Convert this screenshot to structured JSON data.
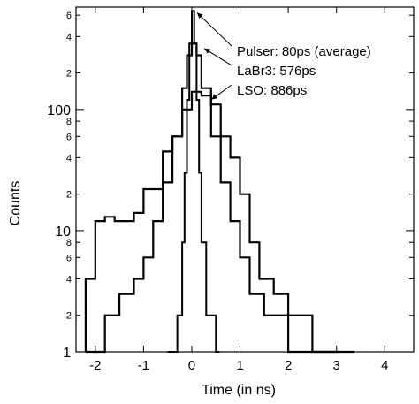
{
  "chart_data": {
    "type": "line",
    "xlabel": "Time (in ns)",
    "ylabel": "Counts",
    "xlim": [
      -2.4,
      4.6
    ],
    "ylim": [
      1,
      700
    ],
    "yscale": "log",
    "grid": false,
    "x_ticks": [
      -2,
      -1,
      0,
      1,
      2,
      3,
      4
    ],
    "x_tick_labels": [
      "-2",
      "-1",
      "0",
      "1",
      "2",
      "3",
      "4"
    ],
    "y_major_ticks": [
      1,
      10,
      100
    ],
    "y_major_labels": [
      "1",
      "10",
      "100"
    ],
    "y_minor_ticks": [
      2,
      4,
      6,
      8,
      20,
      40,
      60,
      80,
      200,
      400,
      600
    ],
    "y_minor_labels": [
      "2",
      "4",
      "6",
      "8",
      "2",
      "4",
      "6",
      "8",
      "2",
      "4",
      "6"
    ],
    "series": [
      {
        "name": "Pulser: 80ps (average)",
        "x": [
          -0.5,
          -0.3,
          -0.2,
          -0.15,
          -0.1,
          -0.05,
          0.0,
          0.05,
          0.1,
          0.15,
          0.2,
          0.3,
          0.5
        ],
        "y": [
          1,
          2,
          8,
          30,
          120,
          350,
          650,
          350,
          120,
          30,
          8,
          2,
          1
        ]
      },
      {
        "name": "LaBr3: 576ps",
        "x": [
          -2.2,
          -1.8,
          -1.5,
          -1.2,
          -1.0,
          -0.8,
          -0.6,
          -0.4,
          -0.2,
          -0.1,
          0.0,
          0.1,
          0.2,
          0.4,
          0.6,
          0.8,
          1.0,
          1.2,
          1.5,
          2.0,
          2.5,
          3.0
        ],
        "y": [
          1,
          2,
          3,
          4,
          6,
          12,
          25,
          60,
          150,
          280,
          350,
          280,
          150,
          60,
          25,
          12,
          6,
          3,
          2,
          1,
          1,
          1
        ]
      },
      {
        "name": "LSO: 886ps",
        "x": [
          -2.2,
          -2.0,
          -1.8,
          -1.6,
          -1.4,
          -1.2,
          -1.0,
          -0.8,
          -0.6,
          -0.4,
          -0.2,
          0.0,
          0.2,
          0.4,
          0.6,
          0.8,
          1.0,
          1.2,
          1.4,
          1.7,
          2.0,
          2.5,
          3.0,
          3.3
        ],
        "y": [
          4,
          12,
          13,
          12,
          12,
          14,
          22,
          22,
          45,
          60,
          100,
          140,
          130,
          110,
          60,
          40,
          20,
          8,
          4,
          3,
          2,
          1,
          1,
          1
        ]
      }
    ],
    "annotations": [
      {
        "text": "Pulser: 80ps (average)",
        "x": 0.0,
        "y": 650
      },
      {
        "text": "LaBr3: 576ps",
        "x": 0.15,
        "y": 330
      },
      {
        "text": "LSO: 886ps",
        "x": 0.3,
        "y": 125
      }
    ]
  }
}
